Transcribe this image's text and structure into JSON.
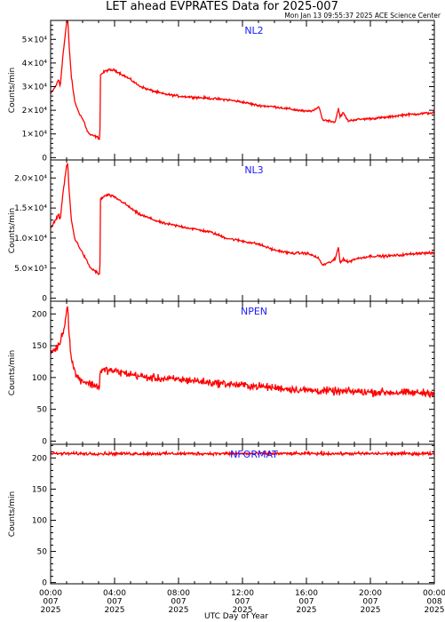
{
  "page": {
    "title": "LET ahead EVPRATES Data for 2025-007",
    "timestamp": "Mon Jan 13 09:55:37 2025 ACE Science Center",
    "x_axis_label": "UTC Day of Year"
  },
  "colors": {
    "series": "#ff0000",
    "panel_label": "#1a1aff",
    "axes": "#000000"
  },
  "chart_data": [
    {
      "type": "line",
      "name": "NL2",
      "ylabel": "Counts/min",
      "xlim": [
        0,
        24
      ],
      "ylim": [
        -1000,
        58000
      ],
      "y_ticks": [
        0,
        10000,
        20000,
        30000,
        40000,
        50000
      ],
      "y_tick_labels": [
        "0",
        "1×10⁴",
        "2×10⁴",
        "3×10⁴",
        "4×10⁴",
        "5×10⁴"
      ],
      "noise": 700,
      "points": [
        [
          0.0,
          27000
        ],
        [
          0.3,
          30000
        ],
        [
          0.5,
          33000
        ],
        [
          0.6,
          30000
        ],
        [
          0.75,
          42000
        ],
        [
          0.9,
          51000
        ],
        [
          1.0,
          57000
        ],
        [
          1.07,
          59000
        ],
        [
          1.15,
          48000
        ],
        [
          1.3,
          34000
        ],
        [
          1.5,
          24000
        ],
        [
          1.7,
          20000
        ],
        [
          1.9,
          17500
        ],
        [
          2.1,
          15000
        ],
        [
          2.3,
          11000
        ],
        [
          2.5,
          9500
        ],
        [
          2.8,
          9000
        ],
        [
          3.08,
          8000
        ],
        [
          3.12,
          35000
        ],
        [
          3.4,
          36500
        ],
        [
          3.6,
          37000
        ],
        [
          4.0,
          37000
        ],
        [
          4.5,
          35000
        ],
        [
          5.0,
          33000
        ],
        [
          5.5,
          30500
        ],
        [
          6.0,
          29000
        ],
        [
          6.5,
          28000
        ],
        [
          7.0,
          27000
        ],
        [
          8.0,
          26000
        ],
        [
          9.0,
          25500
        ],
        [
          10.0,
          25000
        ],
        [
          11.0,
          24500
        ],
        [
          12.0,
          23500
        ],
        [
          13.0,
          22000
        ],
        [
          14.0,
          21500
        ],
        [
          15.0,
          20500
        ],
        [
          16.0,
          19500
        ],
        [
          16.5,
          20000
        ],
        [
          16.8,
          21500
        ],
        [
          17.0,
          16000
        ],
        [
          17.5,
          15500
        ],
        [
          17.8,
          15000
        ],
        [
          18.0,
          21000
        ],
        [
          18.1,
          17000
        ],
        [
          18.3,
          19000
        ],
        [
          18.6,
          15500
        ],
        [
          19.0,
          16000
        ],
        [
          20.0,
          16500
        ],
        [
          21.0,
          17000
        ],
        [
          22.0,
          18000
        ],
        [
          23.0,
          18500
        ],
        [
          24.0,
          19000
        ]
      ]
    },
    {
      "type": "line",
      "name": "NL3",
      "ylabel": "Counts/min",
      "xlim": [
        0,
        24
      ],
      "ylim": [
        -500,
        23000
      ],
      "y_ticks": [
        0,
        5000,
        10000,
        15000,
        20000
      ],
      "y_tick_labels": [
        "0",
        "5.0×10³",
        "1.0×10⁴",
        "1.5×10⁴",
        "2.0×10⁴"
      ],
      "noise": 300,
      "points": [
        [
          0.0,
          11500
        ],
        [
          0.3,
          13000
        ],
        [
          0.5,
          14000
        ],
        [
          0.6,
          13000
        ],
        [
          0.75,
          17000
        ],
        [
          0.9,
          20000
        ],
        [
          1.0,
          22000
        ],
        [
          1.07,
          22500
        ],
        [
          1.15,
          18000
        ],
        [
          1.3,
          13000
        ],
        [
          1.5,
          10000
        ],
        [
          1.7,
          9000
        ],
        [
          1.9,
          8000
        ],
        [
          2.1,
          7000
        ],
        [
          2.3,
          6000
        ],
        [
          2.5,
          5000
        ],
        [
          2.8,
          4500
        ],
        [
          3.08,
          3800
        ],
        [
          3.12,
          16500
        ],
        [
          3.4,
          17000
        ],
        [
          3.6,
          17200
        ],
        [
          4.0,
          16800
        ],
        [
          4.5,
          16000
        ],
        [
          5.0,
          15000
        ],
        [
          5.5,
          14000
        ],
        [
          6.0,
          13500
        ],
        [
          6.5,
          13000
        ],
        [
          7.0,
          12500
        ],
        [
          8.0,
          12000
        ],
        [
          9.0,
          11500
        ],
        [
          10.0,
          11000
        ],
        [
          11.0,
          10000
        ],
        [
          12.0,
          9500
        ],
        [
          13.0,
          9000
        ],
        [
          14.0,
          8000
        ],
        [
          15.0,
          7500
        ],
        [
          16.0,
          7500
        ],
        [
          16.5,
          7000
        ],
        [
          16.8,
          6500
        ],
        [
          17.0,
          5500
        ],
        [
          17.5,
          6000
        ],
        [
          17.8,
          6500
        ],
        [
          18.0,
          8500
        ],
        [
          18.1,
          6000
        ],
        [
          18.3,
          6500
        ],
        [
          18.6,
          6000
        ],
        [
          19.0,
          6500
        ],
        [
          20.0,
          7000
        ],
        [
          21.0,
          7000
        ],
        [
          22.0,
          7200
        ],
        [
          23.0,
          7500
        ],
        [
          24.0,
          7500
        ]
      ]
    },
    {
      "type": "line",
      "name": "NPEN",
      "ylabel": "Counts/min",
      "xlim": [
        0,
        24
      ],
      "ylim": [
        -5,
        220
      ],
      "y_ticks": [
        0,
        50,
        100,
        150,
        200
      ],
      "y_tick_labels": [
        "0",
        "50",
        "100",
        "150",
        "200"
      ],
      "noise": 9,
      "points": [
        [
          0.0,
          140
        ],
        [
          0.3,
          145
        ],
        [
          0.5,
          150
        ],
        [
          0.7,
          165
        ],
        [
          0.9,
          185
        ],
        [
          1.0,
          205
        ],
        [
          1.07,
          218
        ],
        [
          1.15,
          170
        ],
        [
          1.3,
          130
        ],
        [
          1.5,
          110
        ],
        [
          1.7,
          100
        ],
        [
          2.0,
          95
        ],
        [
          2.5,
          90
        ],
        [
          3.05,
          85
        ],
        [
          3.1,
          110
        ],
        [
          3.5,
          112
        ],
        [
          4.0,
          110
        ],
        [
          5.0,
          105
        ],
        [
          6.0,
          100
        ],
        [
          7.0,
          98
        ],
        [
          8.0,
          97
        ],
        [
          9.0,
          95
        ],
        [
          10.0,
          92
        ],
        [
          11.0,
          90
        ],
        [
          12.0,
          88
        ],
        [
          13.0,
          86
        ],
        [
          14.0,
          84
        ],
        [
          15.0,
          82
        ],
        [
          16.0,
          80
        ],
        [
          17.0,
          79
        ],
        [
          18.0,
          78
        ],
        [
          19.0,
          78
        ],
        [
          20.0,
          77
        ],
        [
          21.0,
          77
        ],
        [
          22.0,
          76
        ],
        [
          23.0,
          76
        ],
        [
          24.0,
          76
        ]
      ]
    },
    {
      "type": "line",
      "name": "NFORMAT",
      "ylabel": "Counts/min",
      "xlim": [
        0,
        24
      ],
      "ylim": [
        -2,
        222
      ],
      "y_ticks": [
        0,
        50,
        100,
        150,
        200
      ],
      "y_tick_labels": [
        "0",
        "50",
        "100",
        "150",
        "200"
      ],
      "noise": 3.5,
      "points": [
        [
          0.0,
          207
        ],
        [
          24.0,
          207
        ]
      ]
    }
  ],
  "x_ticks": [
    {
      "x": 0,
      "lines": [
        "00:00",
        "007",
        "2025"
      ]
    },
    {
      "x": 4,
      "lines": [
        "04:00",
        "007",
        "2025"
      ]
    },
    {
      "x": 8,
      "lines": [
        "08:00",
        "007",
        "2025"
      ]
    },
    {
      "x": 12,
      "lines": [
        "12:00",
        "007",
        "2025"
      ]
    },
    {
      "x": 16,
      "lines": [
        "16:00",
        "007",
        "2025"
      ]
    },
    {
      "x": 20,
      "lines": [
        "20:00",
        "007",
        "2025"
      ]
    },
    {
      "x": 24,
      "lines": [
        "00:00",
        "008",
        "2025"
      ]
    }
  ]
}
